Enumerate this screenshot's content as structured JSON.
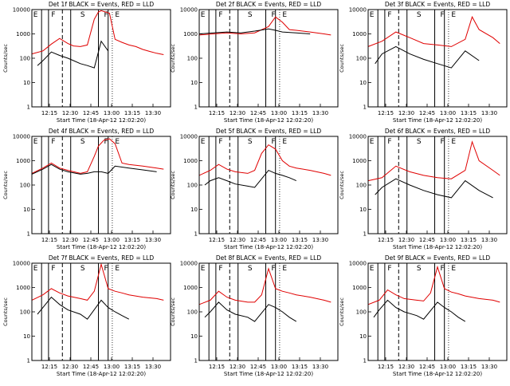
{
  "chart_data": [
    {
      "type": "line",
      "title": "Det 1f BLACK = Events, RED = LLD",
      "xlabel": "Start Time (18-Apr-12 12:02:20)",
      "ylabel": "Counts/sec",
      "yscale": "log",
      "ylim": [
        1,
        10000
      ],
      "xlim": [
        0,
        100
      ],
      "xticks": [
        "12:15",
        "12:30",
        "12:45",
        "13:00",
        "13:15",
        "13:30"
      ],
      "yticks": [
        "1",
        "10",
        "100",
        "1000",
        "10000"
      ],
      "event_letters": [
        "E",
        "F",
        "S",
        "F",
        "E"
      ],
      "series": [
        {
          "color": "#e00000",
          "x": [
            0,
            8,
            14,
            20,
            26,
            30,
            35,
            40,
            45,
            48,
            50,
            56,
            60,
            65,
            70,
            75,
            80,
            85,
            90,
            95
          ],
          "y": [
            150,
            200,
            380,
            650,
            400,
            320,
            300,
            350,
            4000,
            8000,
            9000,
            7000,
            600,
            450,
            350,
            300,
            230,
            190,
            160,
            140
          ]
        },
        {
          "color": "#000000",
          "x": [
            4,
            8,
            14,
            20,
            26,
            30,
            35,
            40,
            45,
            50,
            55
          ],
          "y": [
            50,
            80,
            180,
            130,
            100,
            80,
            60,
            50,
            40,
            500,
            200
          ]
        }
      ]
    },
    {
      "type": "line",
      "title": "Det 2f BLACK = Events, RED = LLD",
      "xlabel": "Start Time (18-Apr-12 12:02:20)",
      "ylabel": "Counts/sec",
      "yscale": "log",
      "ylim": [
        1,
        10000
      ],
      "xlim": [
        0,
        100
      ],
      "xticks": [
        "12:15",
        "12:30",
        "12:45",
        "13:00",
        "13:15",
        "13:30"
      ],
      "yticks": [
        "1",
        "10",
        "100",
        "1000",
        "10000"
      ],
      "event_letters": [
        "E",
        "F",
        "S",
        "F",
        "E"
      ],
      "series": [
        {
          "color": "#e00000",
          "x": [
            0,
            10,
            20,
            30,
            40,
            50,
            55,
            60,
            65,
            70,
            80,
            90,
            95
          ],
          "y": [
            900,
            1000,
            1100,
            1000,
            1100,
            2000,
            5000,
            3000,
            1500,
            1400,
            1200,
            1000,
            900
          ]
        },
        {
          "color": "#000000",
          "x": [
            0,
            10,
            20,
            30,
            40,
            50,
            55,
            60,
            70,
            80
          ],
          "y": [
            1000,
            1100,
            1200,
            1100,
            1300,
            1600,
            1400,
            1200,
            1100,
            1000
          ]
        }
      ]
    },
    {
      "type": "line",
      "title": "Det 3f BLACK = Events, RED = LLD",
      "xlabel": "Start Time (18-Apr-12 12:02:20)",
      "ylabel": "Counts/sec",
      "yscale": "log",
      "ylim": [
        1,
        10000
      ],
      "xlim": [
        0,
        100
      ],
      "xticks": [
        "12:15",
        "12:30",
        "12:45",
        "13:00",
        "13:15",
        "13:30"
      ],
      "yticks": [
        "1",
        "10",
        "100",
        "1000",
        "10000"
      ],
      "event_letters": [
        "E",
        "F",
        "S",
        "F",
        "E"
      ],
      "series": [
        {
          "color": "#e00000",
          "x": [
            0,
            10,
            20,
            30,
            40,
            50,
            60,
            70,
            75,
            80,
            90,
            95
          ],
          "y": [
            300,
            500,
            1200,
            700,
            400,
            350,
            300,
            600,
            5000,
            1500,
            700,
            400
          ]
        },
        {
          "color": "#000000",
          "x": [
            5,
            10,
            20,
            30,
            40,
            50,
            60,
            70,
            80
          ],
          "y": [
            60,
            150,
            300,
            150,
            90,
            60,
            40,
            200,
            80
          ]
        }
      ]
    },
    {
      "type": "line",
      "title": "Det 4f BLACK = Events, RED = LLD",
      "xlabel": "Start Time (18-Apr-12 12:02:20)",
      "ylabel": "Counts/sec",
      "yscale": "log",
      "ylim": [
        1,
        10000
      ],
      "xlim": [
        0,
        100
      ],
      "xticks": [
        "12:15",
        "12:30",
        "12:45",
        "13:00",
        "13:15",
        "13:30"
      ],
      "yticks": [
        "1",
        "10",
        "100",
        "1000",
        "10000"
      ],
      "event_letters": [
        "E",
        "F",
        "S",
        "F",
        "E"
      ],
      "series": [
        {
          "color": "#e00000",
          "x": [
            0,
            8,
            14,
            20,
            26,
            35,
            40,
            45,
            48,
            52,
            56,
            60,
            65,
            70,
            75,
            80,
            90,
            95
          ],
          "y": [
            300,
            500,
            800,
            500,
            400,
            300,
            350,
            1500,
            4000,
            7000,
            8000,
            5000,
            800,
            700,
            650,
            600,
            500,
            450
          ]
        },
        {
          "color": "#000000",
          "x": [
            0,
            8,
            14,
            20,
            26,
            35,
            40,
            45,
            50,
            55,
            60,
            70,
            80,
            90
          ],
          "y": [
            280,
            450,
            700,
            450,
            350,
            280,
            300,
            350,
            350,
            300,
            600,
            500,
            420,
            350
          ]
        }
      ]
    },
    {
      "type": "line",
      "title": "Det 5f BLACK = Events, RED = LLD",
      "xlabel": "Start Time (18-Apr-12 12:02:20)",
      "ylabel": "Counts/sec",
      "yscale": "log",
      "ylim": [
        1,
        10000
      ],
      "xlim": [
        0,
        100
      ],
      "xticks": [
        "12:15",
        "12:30",
        "12:45",
        "13:00",
        "13:15",
        "13:30"
      ],
      "yticks": [
        "1",
        "10",
        "100",
        "1000",
        "10000"
      ],
      "event_letters": [
        "E",
        "F",
        "S",
        "F",
        "E"
      ],
      "series": [
        {
          "color": "#e00000",
          "x": [
            0,
            8,
            14,
            20,
            26,
            35,
            40,
            45,
            50,
            55,
            60,
            65,
            70,
            80,
            90,
            95
          ],
          "y": [
            250,
            400,
            700,
            450,
            350,
            300,
            400,
            2000,
            4500,
            3000,
            1000,
            600,
            500,
            400,
            300,
            250
          ]
        },
        {
          "color": "#000000",
          "x": [
            4,
            8,
            14,
            20,
            26,
            35,
            40,
            50,
            55,
            60,
            65,
            70
          ],
          "y": [
            100,
            150,
            200,
            150,
            110,
            90,
            80,
            400,
            300,
            250,
            200,
            150
          ]
        }
      ]
    },
    {
      "type": "line",
      "title": "Det 6f BLACK = Events, RED = LLD",
      "xlabel": "Start Time (18-Apr-12 12:02:20)",
      "ylabel": "Counts/sec",
      "yscale": "log",
      "ylim": [
        1,
        10000
      ],
      "xlim": [
        0,
        100
      ],
      "xticks": [
        "12:15",
        "12:30",
        "12:45",
        "13:00",
        "13:15",
        "13:30"
      ],
      "yticks": [
        "1",
        "10",
        "100",
        "1000",
        "10000"
      ],
      "event_letters": [
        "E",
        "F",
        "S",
        "F",
        "E"
      ],
      "series": [
        {
          "color": "#e00000",
          "x": [
            0,
            10,
            20,
            30,
            40,
            50,
            60,
            70,
            75,
            80,
            90,
            95
          ],
          "y": [
            150,
            200,
            600,
            350,
            250,
            200,
            180,
            400,
            6000,
            1000,
            400,
            250
          ]
        },
        {
          "color": "#000000",
          "x": [
            5,
            10,
            20,
            30,
            40,
            50,
            60,
            70,
            80,
            90
          ],
          "y": [
            40,
            80,
            180,
            100,
            60,
            40,
            30,
            150,
            60,
            30
          ]
        }
      ]
    },
    {
      "type": "line",
      "title": "Det 7f BLACK = Events, RED = LLD",
      "xlabel": "Start Time (18-Apr-12 12:02:20)",
      "ylabel": "Counts/sec",
      "yscale": "log",
      "ylim": [
        1,
        10000
      ],
      "xlim": [
        0,
        100
      ],
      "xticks": [
        "12:15",
        "12:30",
        "12:45",
        "13:00",
        "13:15",
        "13:30"
      ],
      "yticks": [
        "1",
        "10",
        "100",
        "1000",
        "10000"
      ],
      "event_letters": [
        "E",
        "F",
        "S",
        "F",
        "E"
      ],
      "series": [
        {
          "color": "#e00000",
          "x": [
            0,
            8,
            14,
            20,
            26,
            35,
            40,
            45,
            50,
            55,
            60,
            65,
            70,
            80,
            90,
            95
          ],
          "y": [
            300,
            500,
            900,
            600,
            450,
            350,
            300,
            700,
            9000,
            900,
            700,
            600,
            500,
            400,
            350,
            300
          ]
        },
        {
          "color": "#000000",
          "x": [
            4,
            8,
            14,
            20,
            26,
            35,
            40,
            50,
            55,
            60,
            65,
            70
          ],
          "y": [
            80,
            150,
            400,
            200,
            120,
            80,
            50,
            300,
            150,
            100,
            70,
            50
          ]
        }
      ]
    },
    {
      "type": "line",
      "title": "Det 8f BLACK = Events, RED = LLD",
      "xlabel": "Start Time (18-Apr-12 12:02:20)",
      "ylabel": "Counts/sec",
      "yscale": "log",
      "ylim": [
        1,
        10000
      ],
      "xlim": [
        0,
        100
      ],
      "xticks": [
        "12:15",
        "12:30",
        "12:45",
        "13:00",
        "13:15",
        "13:30"
      ],
      "yticks": [
        "1",
        "10",
        "100",
        "1000",
        "10000"
      ],
      "event_letters": [
        "E",
        "F",
        "S",
        "F",
        "E"
      ],
      "series": [
        {
          "color": "#e00000",
          "x": [
            0,
            8,
            14,
            20,
            26,
            35,
            40,
            45,
            50,
            55,
            60,
            65,
            70,
            80,
            90,
            95
          ],
          "y": [
            200,
            300,
            700,
            400,
            300,
            250,
            250,
            500,
            6000,
            900,
            700,
            600,
            500,
            400,
            300,
            250
          ]
        },
        {
          "color": "#000000",
          "x": [
            4,
            8,
            14,
            20,
            26,
            35,
            40,
            50,
            55,
            60,
            65,
            70
          ],
          "y": [
            60,
            100,
            250,
            120,
            80,
            60,
            40,
            200,
            150,
            100,
            60,
            40
          ]
        }
      ]
    },
    {
      "type": "line",
      "title": "Det 9f BLACK = Events, RED = LLD",
      "xlabel": "Start Time (18-Apr-12 12:02:20)",
      "ylabel": "Counts/sec",
      "yscale": "log",
      "ylim": [
        1,
        10000
      ],
      "xlim": [
        0,
        100
      ],
      "xticks": [
        "12:15",
        "12:30",
        "12:45",
        "13:00",
        "13:15",
        "13:30"
      ],
      "yticks": [
        "1",
        "10",
        "100",
        "1000",
        "10000"
      ],
      "event_letters": [
        "E",
        "F",
        "S",
        "F",
        "E"
      ],
      "series": [
        {
          "color": "#e00000",
          "x": [
            0,
            8,
            14,
            20,
            26,
            35,
            40,
            45,
            50,
            55,
            60,
            65,
            70,
            80,
            90,
            95
          ],
          "y": [
            200,
            300,
            800,
            500,
            350,
            300,
            280,
            600,
            7000,
            900,
            650,
            550,
            450,
            350,
            300,
            250
          ]
        },
        {
          "color": "#000000",
          "x": [
            4,
            8,
            14,
            20,
            26,
            35,
            40,
            50,
            55,
            60,
            65,
            70
          ],
          "y": [
            60,
            120,
            300,
            150,
            100,
            70,
            50,
            250,
            150,
            100,
            60,
            40
          ]
        }
      ]
    }
  ]
}
